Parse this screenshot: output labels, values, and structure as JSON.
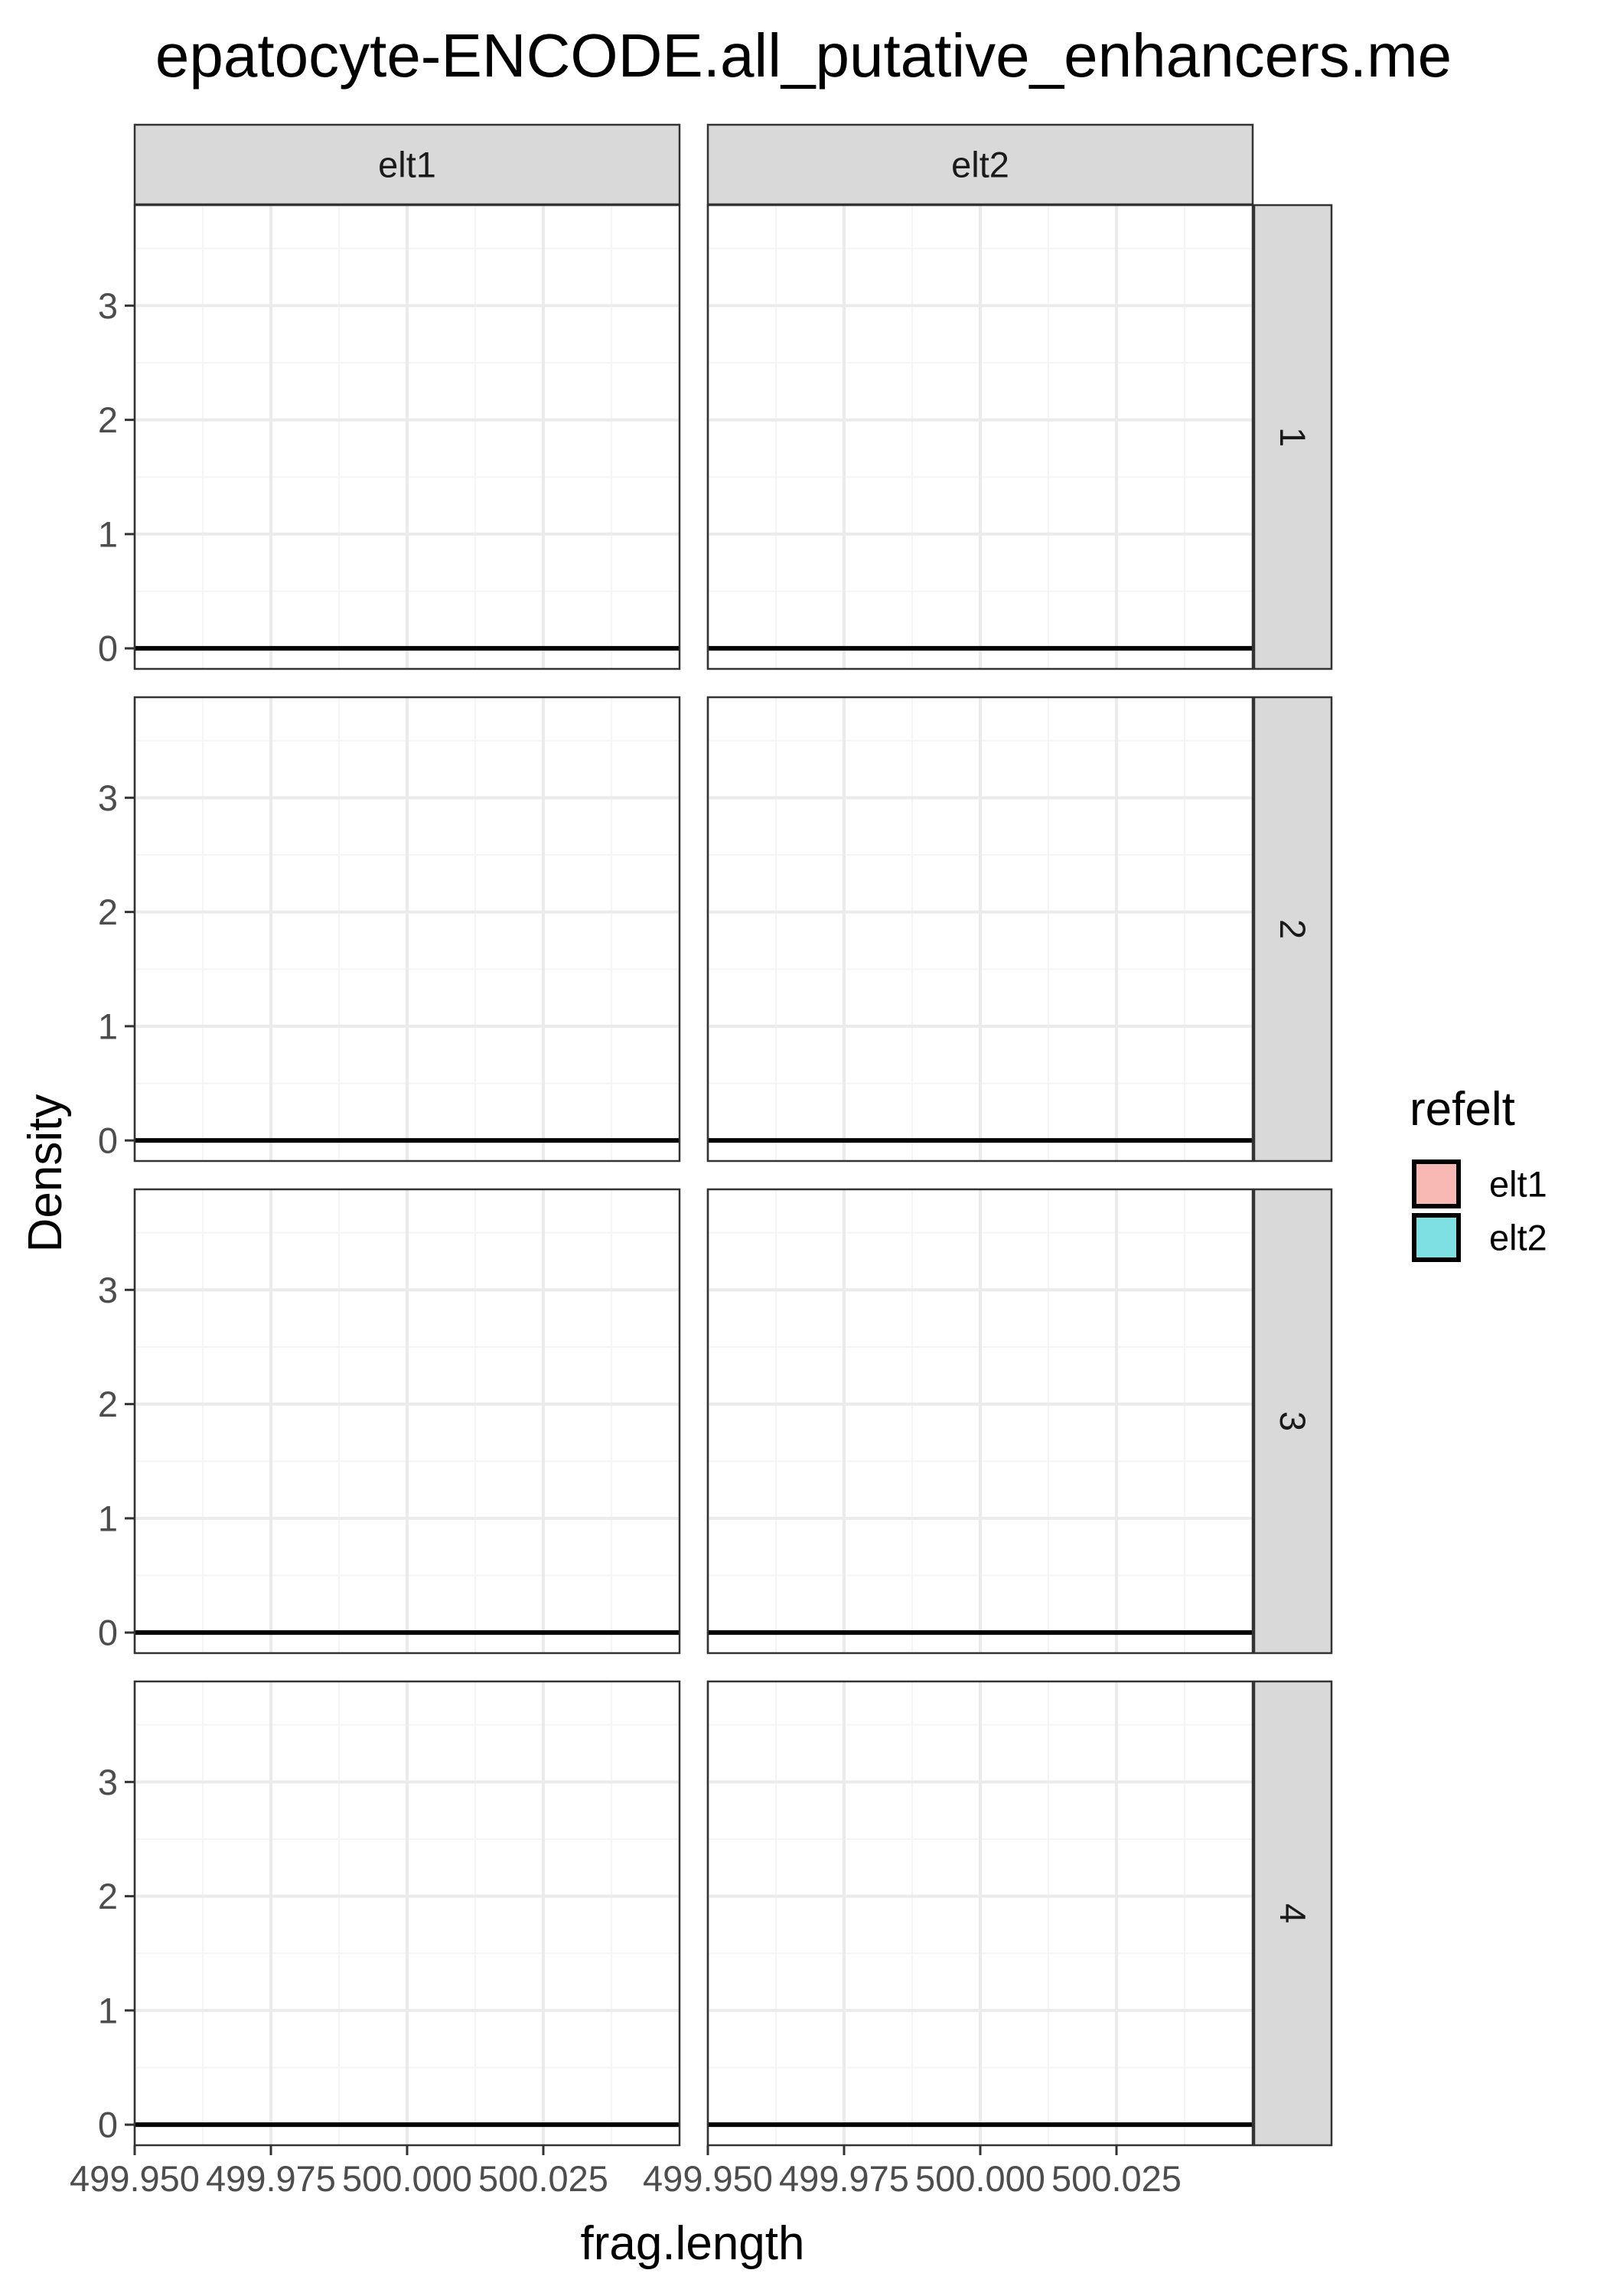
{
  "chart_data": {
    "type": "area",
    "title": "epatocyte-ENCODE.all_putative_enhancers.me",
    "xlabel": "frag.length",
    "ylabel": "Density",
    "xlim": [
      499.95,
      500.05
    ],
    "ylim": [
      -0.18,
      3.88
    ],
    "x_ticks": [
      499.95,
      499.975,
      500.0,
      500.025
    ],
    "x_tick_labels": [
      "499.950",
      "499.975",
      "500.000",
      "500.025"
    ],
    "y_ticks": [
      0,
      1,
      2,
      3
    ],
    "y_tick_labels": [
      "0",
      "1",
      "2",
      "3"
    ],
    "grid": true,
    "facet_cols": [
      "elt1",
      "elt2"
    ],
    "facet_rows": [
      "1",
      "2",
      "3",
      "4"
    ],
    "legend": {
      "title": "refelt",
      "position": "right",
      "entries": [
        {
          "label": "elt1",
          "color": "#F8B9B5"
        },
        {
          "label": "elt2",
          "color": "#7FE0E3"
        }
      ]
    },
    "series": [
      {
        "panel_row": "1",
        "panel_col": "elt1",
        "x": [
          499.95,
          500.05
        ],
        "y": [
          0,
          0
        ]
      },
      {
        "panel_row": "1",
        "panel_col": "elt2",
        "x": [
          499.95,
          500.05
        ],
        "y": [
          0,
          0
        ]
      },
      {
        "panel_row": "2",
        "panel_col": "elt1",
        "x": [
          499.95,
          500.05
        ],
        "y": [
          0,
          0
        ]
      },
      {
        "panel_row": "2",
        "panel_col": "elt2",
        "x": [
          499.95,
          500.05
        ],
        "y": [
          0,
          0
        ]
      },
      {
        "panel_row": "3",
        "panel_col": "elt1",
        "x": [
          499.95,
          500.05
        ],
        "y": [
          0,
          0
        ]
      },
      {
        "panel_row": "3",
        "panel_col": "elt2",
        "x": [
          499.95,
          500.05
        ],
        "y": [
          0,
          0
        ]
      },
      {
        "panel_row": "4",
        "panel_col": "elt1",
        "x": [
          499.95,
          500.05
        ],
        "y": [
          0,
          0
        ]
      },
      {
        "panel_row": "4",
        "panel_col": "elt2",
        "x": [
          499.95,
          500.05
        ],
        "y": [
          0,
          0
        ]
      }
    ],
    "colors": {
      "panel_border": "#333333",
      "strip_fill": "#D9D9D9",
      "grid_major": "#EBEBEB",
      "grid_minor": "#F5F5F5",
      "density_line": "#000000"
    }
  }
}
